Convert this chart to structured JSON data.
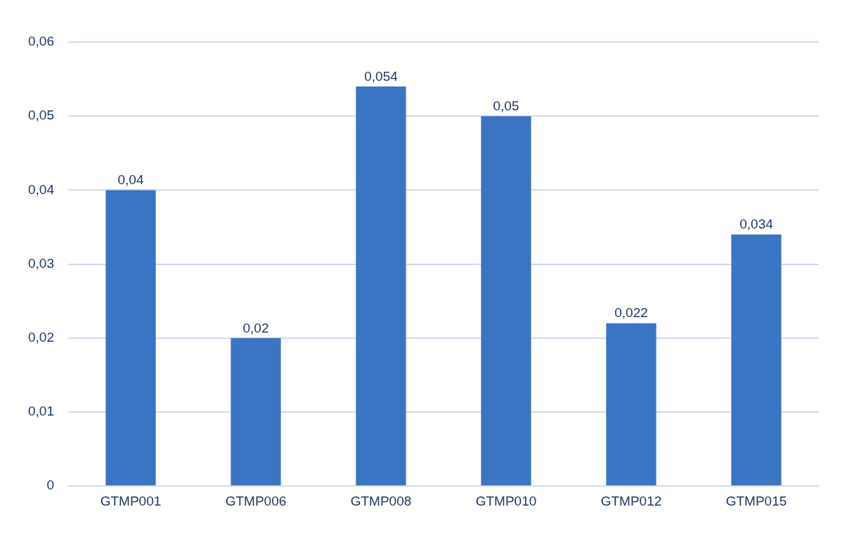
{
  "chart_data": {
    "type": "bar",
    "categories": [
      "GTMP001",
      "GTMP006",
      "GTMP008",
      "GTMP010",
      "GTMP012",
      "GTMP015"
    ],
    "values": [
      0.04,
      0.02,
      0.054,
      0.05,
      0.022,
      0.034
    ],
    "value_labels": [
      "0,04",
      "0,02",
      "0,054",
      "0,05",
      "0,022",
      "0,034"
    ],
    "color": "#3a74c2",
    "ylim": [
      0,
      0.06
    ],
    "yticks": [
      {
        "value": 0,
        "label": "0"
      },
      {
        "value": 0.01,
        "label": "0,01"
      },
      {
        "value": 0.02,
        "label": "0,02"
      },
      {
        "value": 0.03,
        "label": "0,03"
      },
      {
        "value": 0.04,
        "label": "0,04"
      },
      {
        "value": 0.05,
        "label": "0,05"
      },
      {
        "value": 0.06,
        "label": "0,06"
      }
    ],
    "grid": "y",
    "legend": false
  }
}
